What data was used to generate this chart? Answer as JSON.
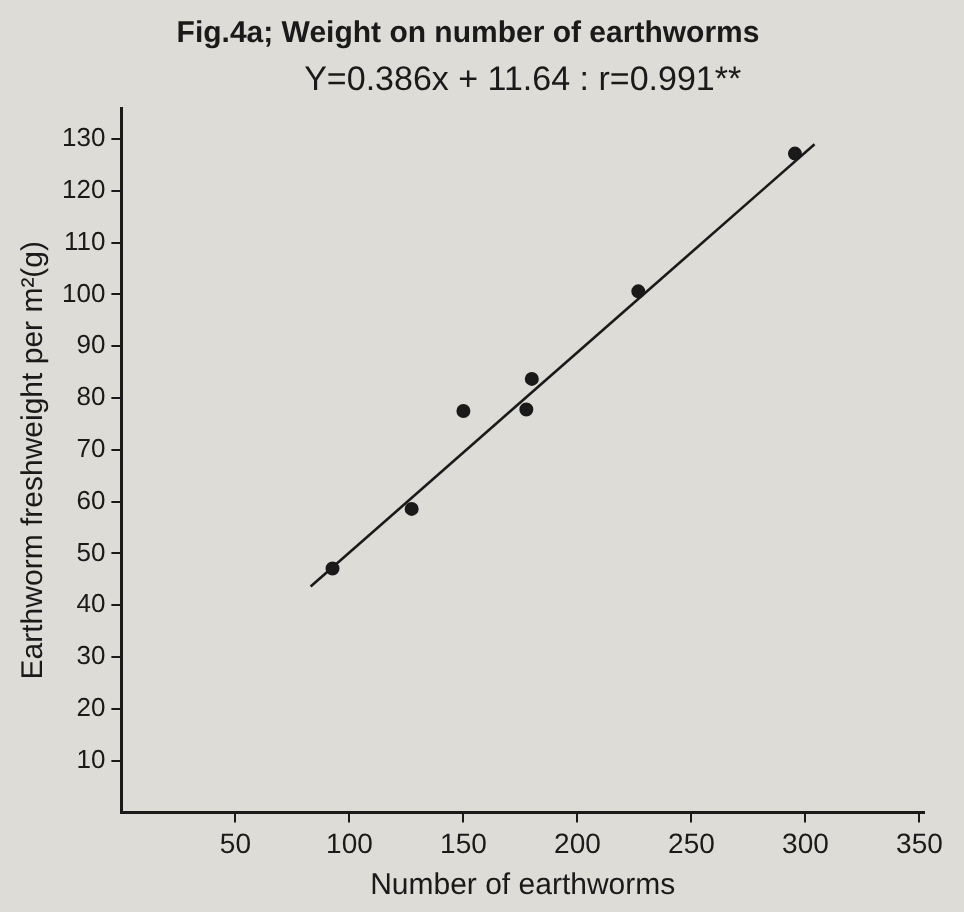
{
  "chart_data": {
    "type": "scatter",
    "title": "Fig.4a; Weight on number of earthworms",
    "xlabel": "Number of earthworms",
    "ylabel": "Earthworm freshweight per m²(g)",
    "annotations": [
      "Y=0.386x + 11.64 : r=0.991**"
    ],
    "series": [
      {
        "color": "#1a1a1a",
        "marker": "circle",
        "x": [
          92.6,
          127.3,
          150,
          177.6,
          180,
          226.7,
          295.4
        ],
        "values": [
          47.1,
          58.6,
          77.5,
          77.8,
          83.7,
          100.6,
          127.2
        ]
      },
      {
        "type": "line",
        "marker": "none",
        "color": "#1a1a1a",
        "x": [
          83,
          304
        ],
        "values": [
          43.6,
          129
        ]
      }
    ],
    "xlim": [
      0,
      352
    ],
    "xticks": [
      50,
      100,
      150,
      200,
      250,
      300,
      350
    ],
    "ylim": [
      0,
      136
    ],
    "yticks": [
      10,
      20,
      30,
      40,
      50,
      60,
      70,
      80,
      90,
      100,
      110,
      120,
      130
    ],
    "grid": false,
    "legend": false
  }
}
